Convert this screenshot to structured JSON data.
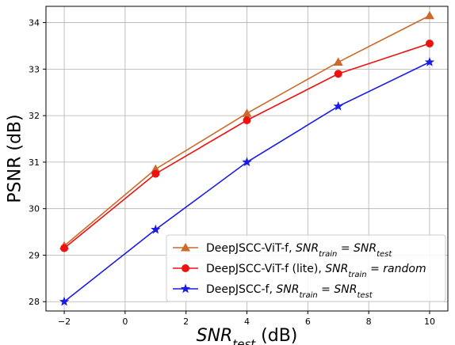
{
  "chart_data": {
    "type": "line",
    "xlabel": "SNR_test (dB)",
    "xlabel_parts": {
      "main": "SNR",
      "sub": "test",
      "unit": " (dB)"
    },
    "ylabel": "PSNR (dB)",
    "xlim": [
      -2.6,
      10.6
    ],
    "ylim": [
      27.8,
      34.35
    ],
    "x_ticks": [
      -2,
      0,
      2,
      4,
      6,
      8,
      10
    ],
    "y_ticks": [
      28,
      29,
      30,
      31,
      32,
      33,
      34
    ],
    "grid": true,
    "legend_position": "lower-right",
    "series": [
      {
        "name": "DeepJSCC-ViT-f, SNR_train = SNR_test",
        "legend": {
          "prefix": "DeepJSCC-ViT-f, ",
          "lhs": "SNR",
          "lhs_sub": "train",
          "rhs": "SNR",
          "rhs_sub": "test"
        },
        "color": "#cc6a2a",
        "marker": "triangle",
        "x": [
          -2,
          1,
          4,
          7,
          10
        ],
        "y": [
          29.2,
          30.85,
          32.05,
          33.15,
          34.15
        ]
      },
      {
        "name": "DeepJSCC-ViT-f (lite), SNR_train = random",
        "legend": {
          "prefix": "DeepJSCC-ViT-f (lite), ",
          "lhs": "SNR",
          "lhs_sub": "train",
          "rhs": "random",
          "rhs_sub": ""
        },
        "color": "#ee1111",
        "marker": "circle",
        "x": [
          -2,
          1,
          4,
          7,
          10
        ],
        "y": [
          29.15,
          30.75,
          31.9,
          32.9,
          33.55
        ]
      },
      {
        "name": "DeepJSCC-f, SNR_train = SNR_test",
        "legend": {
          "prefix": "DeepJSCC-f, ",
          "lhs": "SNR",
          "lhs_sub": "train",
          "rhs": "SNR",
          "rhs_sub": "test"
        },
        "color": "#1a1ae6",
        "marker": "star",
        "x": [
          -2,
          1,
          4,
          7,
          10
        ],
        "y": [
          28.0,
          29.55,
          31.0,
          32.2,
          33.15
        ]
      }
    ]
  }
}
